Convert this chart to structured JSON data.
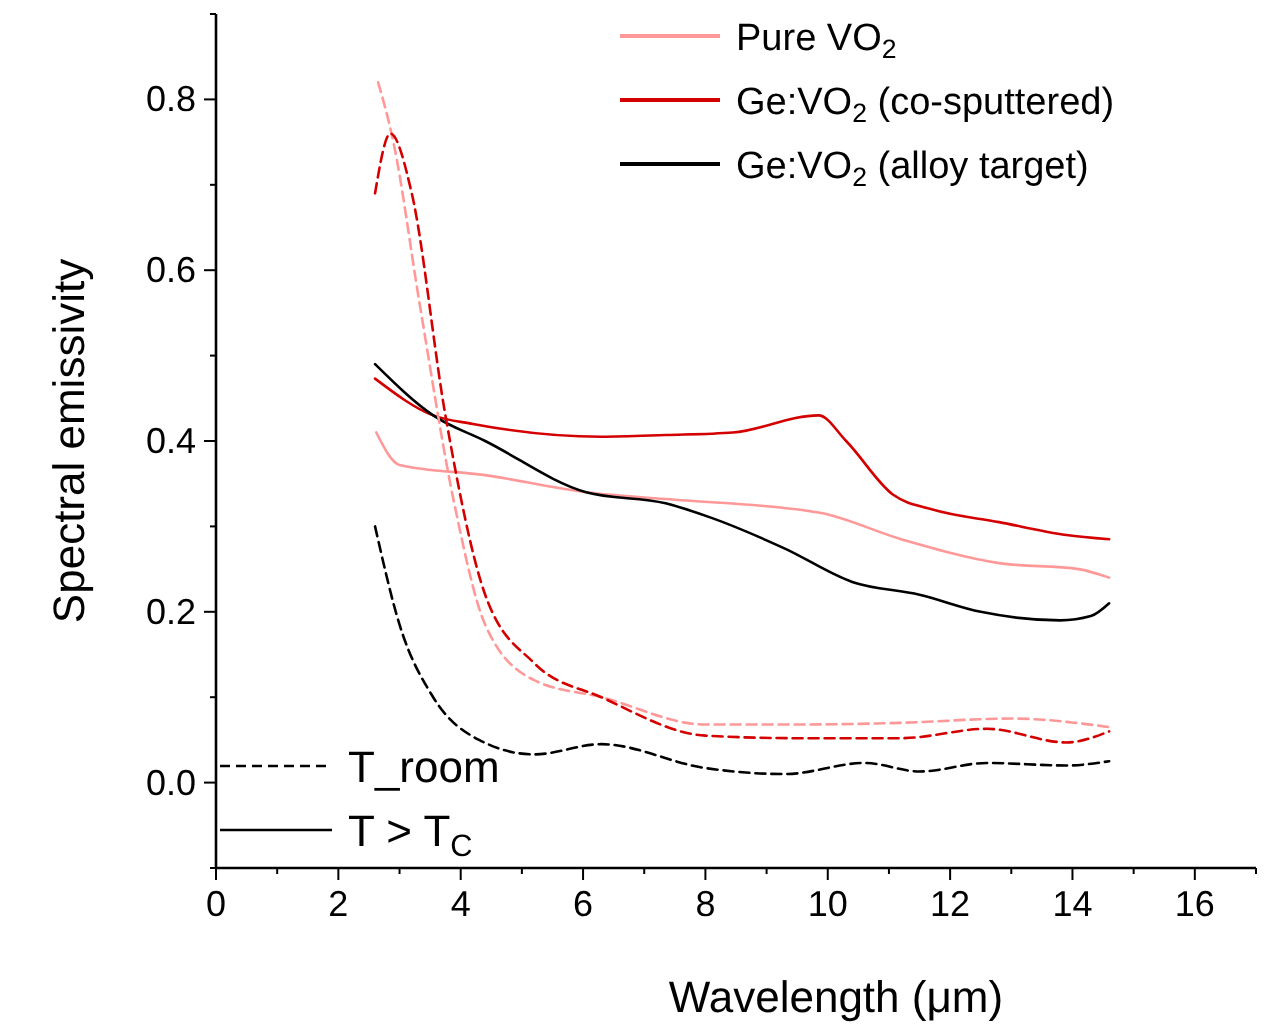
{
  "chart_data": {
    "type": "line",
    "xlabel": "Wavelength (μm)",
    "ylabel": "Spectral emissivity",
    "xlim": [
      0,
      17
    ],
    "ylim": [
      -0.1,
      0.9
    ],
    "xticks": [
      0,
      {
        "value": 1,
        "label": null
      },
      2,
      {
        "value": 3,
        "label": null
      },
      4,
      {
        "value": 5,
        "label": null
      },
      6,
      {
        "value": 7,
        "label": null
      },
      8,
      {
        "value": 9,
        "label": null
      },
      10,
      {
        "value": 11,
        "label": null
      },
      12,
      {
        "value": 13,
        "label": null
      },
      14,
      {
        "value": 15,
        "label": null
      },
      16,
      {
        "value": 17,
        "label": null
      }
    ],
    "yticks": [
      {
        "value": -0.1,
        "label": null
      },
      {
        "value": 0,
        "label": "0.0"
      },
      {
        "value": 0.1,
        "label": null
      },
      0.2,
      {
        "value": 0.3,
        "label": null
      },
      0.4,
      {
        "value": 0.5,
        "label": null
      },
      0.6,
      {
        "value": 0.7,
        "label": null
      },
      0.8,
      {
        "value": 0.9,
        "label": null
      }
    ],
    "grid": false,
    "legend": "top right",
    "annotations": [
      "T_room",
      "T > T$_{C}$"
    ],
    "series": [
      {
        "name": "Pure VO$_{2}$",
        "color": "#ff9999",
        "line_style": "solid",
        "x": [
          2.62,
          3.0,
          4.4,
          6.05,
          7.35,
          9.87,
          11.2,
          12.8,
          14.1,
          14.6
        ],
        "values": [
          0.41,
          0.372,
          0.36,
          0.34,
          0.332,
          0.316,
          0.285,
          0.257,
          0.25,
          0.24
        ]
      },
      {
        "name": "Ge:VO$_{2}$ (co-sputtered)",
        "color": "#d40000",
        "line_style": "solid",
        "x": [
          2.6,
          3.55,
          4.2,
          6.3,
          7.35,
          8.45,
          9.85,
          10.3,
          11.07,
          11.7,
          12.8,
          13.9,
          14.6
        ],
        "values": [
          0.473,
          0.43,
          0.42,
          0.405,
          0.407,
          0.41,
          0.43,
          0.4,
          0.337,
          0.32,
          0.305,
          0.29,
          0.285
        ]
      },
      {
        "name": "Ge:VO$_{2}$ (alloy target)",
        "color": "#000000",
        "line_style": "solid",
        "x": [
          2.6,
          3.55,
          4.4,
          6.05,
          7.35,
          8.1,
          9.3,
          10.4,
          11.5,
          12.5,
          13.8,
          14.3,
          14.6
        ],
        "values": [
          0.49,
          0.43,
          0.4,
          0.34,
          0.327,
          0.31,
          0.274,
          0.235,
          0.22,
          0.2,
          0.19,
          0.195,
          0.21
        ]
      },
      {
        "color": "#ff9999",
        "line_style": "dashed",
        "x": [
          2.65,
          2.9,
          3.33,
          3.9,
          4.4,
          5.2,
          6.3,
          8.0,
          9.5,
          11.2,
          13.0,
          14.6
        ],
        "values": [
          0.82,
          0.75,
          0.56,
          0.325,
          0.185,
          0.12,
          0.1,
          0.068,
          0.068,
          0.07,
          0.075,
          0.065
        ]
      },
      {
        "color": "#d40000",
        "line_style": "dashed",
        "x": [
          2.6,
          2.85,
          3.2,
          3.75,
          4.4,
          5.2,
          6.3,
          8.0,
          9.5,
          11.2,
          12.6,
          13.9,
          14.6
        ],
        "values": [
          0.69,
          0.76,
          0.69,
          0.43,
          0.22,
          0.14,
          0.1,
          0.055,
          0.052,
          0.052,
          0.063,
          0.047,
          0.06
        ]
      },
      {
        "color": "#000000",
        "line_style": "dashed",
        "x": [
          2.6,
          3.0,
          3.55,
          4.3,
          5.2,
          6.3,
          8.0,
          9.3,
          10.6,
          11.5,
          12.6,
          13.9,
          14.6
        ],
        "values": [
          0.3,
          0.185,
          0.1,
          0.05,
          0.033,
          0.045,
          0.017,
          0.01,
          0.023,
          0.013,
          0.023,
          0.02,
          0.025
        ]
      }
    ]
  }
}
